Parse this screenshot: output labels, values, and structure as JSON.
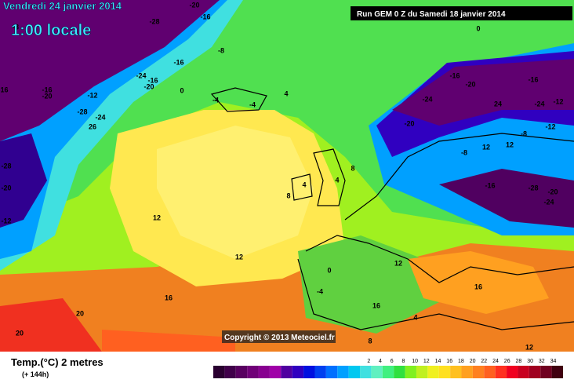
{
  "header": {
    "title": "Vendredi 24 janvier 2014",
    "time": "1:00 locale",
    "run": "Run GEM 0 Z du Samedi 18 janvier 2014"
  },
  "map": {
    "contour_labels": [
      -20,
      -16,
      -28,
      -8,
      -16,
      -8,
      -24,
      -16,
      -20,
      -16,
      -16,
      -20,
      -12,
      0,
      -28,
      -24,
      26,
      4,
      -4,
      -4,
      0,
      -16,
      -20,
      -16,
      -24,
      24,
      -24,
      -12,
      -20,
      -12,
      -8,
      -8,
      12,
      12,
      -28,
      -20,
      -16,
      -24,
      -28,
      -20,
      -12,
      8,
      4,
      4,
      8,
      12,
      12,
      12,
      16,
      16,
      20,
      20,
      16,
      12,
      8,
      4,
      0,
      -4
    ],
    "copyright": "Copyright © 2013 Meteociel.fr"
  },
  "footer": {
    "variable": "Temp.(°C) 2 metres",
    "lead": "(+ 144h)",
    "scale_ticks": [
      2,
      4,
      6,
      8,
      10,
      12,
      14,
      16,
      18,
      20,
      22,
      24,
      26,
      28,
      30,
      32,
      34
    ],
    "scale_colors": [
      "#2a0030",
      "#40004a",
      "#580060",
      "#700078",
      "#880090",
      "#a000a8",
      "#5000a0",
      "#3000c0",
      "#0010e0",
      "#0040f0",
      "#0070ff",
      "#00a0ff",
      "#00c8f0",
      "#40e0e0",
      "#60f0c0",
      "#40f080",
      "#30e040",
      "#80f020",
      "#c0f020",
      "#f0f020",
      "#ffe020",
      "#ffc020",
      "#ffa020",
      "#ff8020",
      "#ff6020",
      "#ff3020",
      "#f00020",
      "#c80020",
      "#a00020",
      "#700020",
      "#400010"
    ]
  }
}
